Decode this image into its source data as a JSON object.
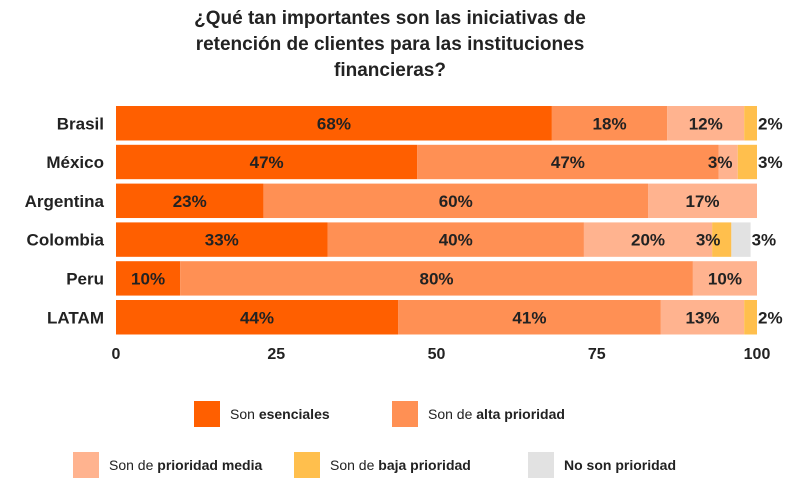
{
  "chart_data": {
    "type": "bar",
    "orientation": "horizontal",
    "stacked": true,
    "title": "¿Qué tan importantes son las iniciativas de retención de clientes para las instituciones financieras?",
    "title_lines": [
      "¿Qué tan importantes son las iniciativas de",
      "retención de clientes para las instituciones",
      "financieras?"
    ],
    "categories": [
      "Brasil",
      "México",
      "Argentina",
      "Colombia",
      "Peru",
      "LATAM"
    ],
    "xlim": [
      0,
      100
    ],
    "xticks": [
      "0",
      "25",
      "50",
      "75",
      "100"
    ],
    "grid": false,
    "legend_position": "bottom",
    "series": [
      {
        "name": "Son esenciales",
        "legend_prefix": "Son ",
        "legend_bold": "esenciales",
        "color": "#ff5f00",
        "values": [
          68,
          47,
          23,
          33,
          10,
          44
        ],
        "labels": [
          "68%",
          "47%",
          "23%",
          "33%",
          "10%",
          "44%"
        ]
      },
      {
        "name": "Son de alta prioridad",
        "legend_prefix": "Son de ",
        "legend_bold": "alta prioridad",
        "color": "#ff9054",
        "values": [
          18,
          47,
          60,
          40,
          80,
          41
        ],
        "labels": [
          "18%",
          "47%",
          "60%",
          "40%",
          "80%",
          "41%"
        ]
      },
      {
        "name": "Son de prioridad media",
        "legend_prefix": "Son de ",
        "legend_bold": "prioridad media",
        "color": "#ffb38f",
        "values": [
          12,
          3,
          17,
          20,
          10,
          13
        ],
        "labels": [
          "12%",
          "3%",
          "17%",
          "20%",
          "10%",
          "13%"
        ]
      },
      {
        "name": "Son de baja prioridad",
        "legend_prefix": "Son de ",
        "legend_bold": "baja prioridad",
        "color": "#ffbf4d",
        "values": [
          2,
          3,
          0,
          3,
          0,
          2
        ],
        "labels": [
          "2%",
          "3%",
          "",
          "3%",
          "",
          "2%"
        ]
      },
      {
        "name": "No son prioridad",
        "legend_prefix": "",
        "legend_bold": "No son prioridad",
        "color": "#e2e2e2",
        "values": [
          0,
          0,
          0,
          3,
          0,
          0
        ],
        "labels": [
          "",
          "",
          "",
          "3%",
          "",
          ""
        ]
      }
    ]
  }
}
